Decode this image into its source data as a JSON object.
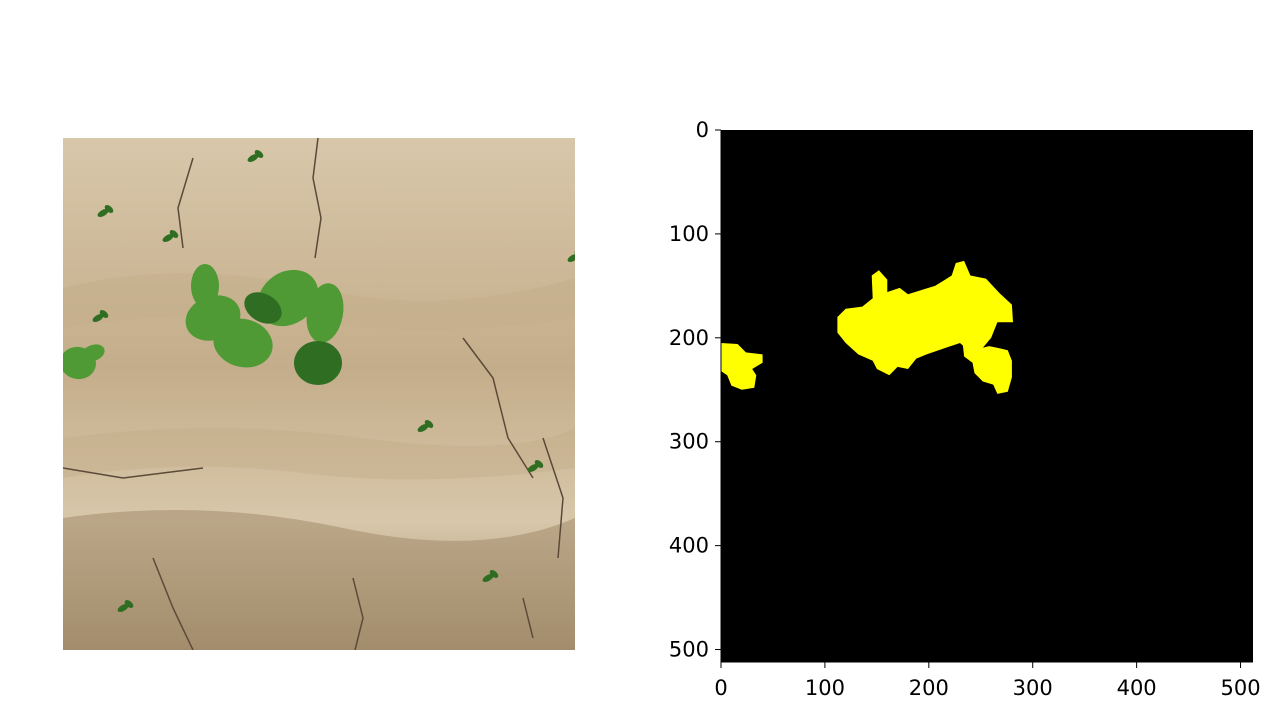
{
  "colors": {
    "soil_light": "#d8c7aa",
    "soil_mid": "#c4ad8a",
    "soil_dark": "#a38d6c",
    "crack": "#5b4a39",
    "leaf": "#4f9a35",
    "leaf_dark": "#2f6e22",
    "mask_background": "#000000",
    "mask_foreground": "#ffff00"
  },
  "chart_data": [
    {
      "type": "image",
      "content": "field-photo",
      "axes_visible": false
    },
    {
      "type": "heatmap",
      "content": "binary-segmentation-mask",
      "xlim": [
        0,
        512
      ],
      "ylim": [
        512,
        0
      ],
      "x_ticks": [
        "0",
        "100",
        "200",
        "300",
        "400",
        "500"
      ],
      "y_ticks": [
        "0",
        "100",
        "200",
        "300",
        "400",
        "500"
      ],
      "x_tick_values": [
        0,
        100,
        200,
        300,
        400,
        500
      ],
      "y_tick_values": [
        0,
        100,
        200,
        300,
        400,
        500
      ],
      "background_value": 0,
      "foreground_value": 1,
      "regions": [
        {
          "polygon": [
            [
              112,
              180
            ],
            [
              120,
              172
            ],
            [
              136,
              170
            ],
            [
              146,
              162
            ],
            [
              145,
              140
            ],
            [
              152,
              135
            ],
            [
              160,
              144
            ],
            [
              160,
              156
            ],
            [
              172,
              152
            ],
            [
              180,
              158
            ],
            [
              196,
              153
            ],
            [
              206,
              150
            ],
            [
              214,
              145
            ],
            [
              222,
              140
            ],
            [
              226,
              128
            ],
            [
              234,
              126
            ],
            [
              240,
              140
            ],
            [
              255,
              143
            ],
            [
              268,
              157
            ],
            [
              280,
              168
            ],
            [
              281,
              185
            ],
            [
              266,
              185
            ],
            [
              260,
              200
            ],
            [
              250,
              212
            ],
            [
              240,
              214
            ],
            [
              230,
              205
            ],
            [
              215,
              210
            ],
            [
              198,
              216
            ],
            [
              188,
              220
            ],
            [
              180,
              230
            ],
            [
              170,
              228
            ],
            [
              162,
              236
            ],
            [
              150,
              230
            ],
            [
              146,
              222
            ],
            [
              132,
              216
            ],
            [
              120,
              205
            ],
            [
              112,
              195
            ]
          ]
        },
        {
          "polygon": [
            [
              232,
              200
            ],
            [
              246,
              204
            ],
            [
              250,
              210
            ],
            [
              258,
              208
            ],
            [
              268,
              210
            ],
            [
              276,
              212
            ],
            [
              280,
              222
            ],
            [
              280,
              238
            ],
            [
              276,
              252
            ],
            [
              266,
              254
            ],
            [
              262,
              245
            ],
            [
              252,
              242
            ],
            [
              244,
              234
            ],
            [
              242,
              224
            ],
            [
              234,
              218
            ]
          ]
        },
        {
          "polygon": [
            [
              0,
              205
            ],
            [
              16,
              206
            ],
            [
              24,
              214
            ],
            [
              40,
              216
            ],
            [
              40,
              224
            ],
            [
              30,
              230
            ],
            [
              34,
              236
            ],
            [
              32,
              248
            ],
            [
              20,
              250
            ],
            [
              10,
              246
            ],
            [
              6,
              236
            ],
            [
              0,
              232
            ]
          ]
        }
      ]
    }
  ]
}
